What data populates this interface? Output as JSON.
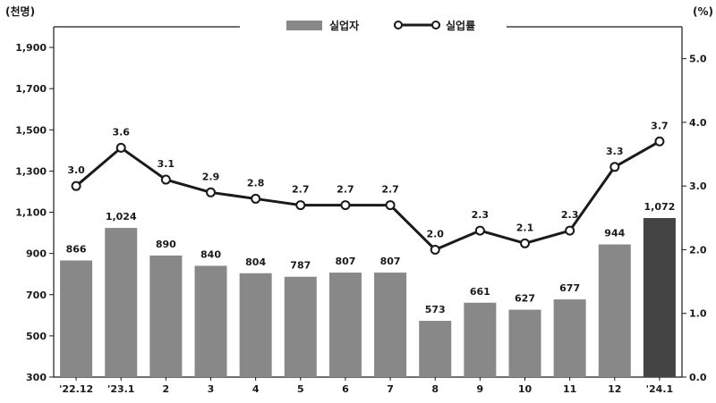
{
  "chart_data": {
    "type": "bar",
    "title": "",
    "left_unit": "(천명)",
    "right_unit": "(%)",
    "categories": [
      "'22.12",
      "'23.1",
      "2",
      "3",
      "4",
      "5",
      "6",
      "7",
      "8",
      "9",
      "10",
      "11",
      "12",
      "'24.1"
    ],
    "series": [
      {
        "name": "실업자",
        "type": "bar",
        "axis": "left",
        "values": [
          866,
          1024,
          890,
          840,
          804,
          787,
          807,
          807,
          573,
          661,
          627,
          677,
          944,
          1072
        ],
        "labels": [
          "866",
          "1,024",
          "890",
          "840",
          "804",
          "787",
          "807",
          "807",
          "573",
          "661",
          "627",
          "677",
          "944",
          "1,072"
        ],
        "highlight_last": true
      },
      {
        "name": "실업률",
        "type": "line",
        "axis": "right",
        "values": [
          3.0,
          3.6,
          3.1,
          2.9,
          2.8,
          2.7,
          2.7,
          2.7,
          2.0,
          2.3,
          2.1,
          2.3,
          3.3,
          3.7
        ],
        "labels": [
          "3.0",
          "3.6",
          "3.1",
          "2.9",
          "2.8",
          "2.7",
          "2.7",
          "2.7",
          "2.0",
          "2.3",
          "2.1",
          "2.3",
          "3.3",
          "3.7"
        ]
      }
    ],
    "ylim": [
      300,
      2000
    ],
    "y2lim": [
      0,
      5.5
    ],
    "left_ticks": [
      "300",
      "500",
      "700",
      "900",
      "1,100",
      "1,300",
      "1,500",
      "1,700",
      "1,900"
    ],
    "left_tick_values": [
      300,
      500,
      700,
      900,
      1100,
      1300,
      1500,
      1700,
      1900
    ],
    "right_ticks": [
      "0.0",
      "1.0",
      "2.0",
      "3.0",
      "4.0",
      "5.0"
    ],
    "right_tick_values": [
      0,
      1,
      2,
      3,
      4,
      5
    ],
    "legend_position": "top-center",
    "grid": false,
    "colors": {
      "bar": "#888888",
      "bar_highlight": "#444444",
      "line": "#1a1a1a",
      "marker_fill": "#ffffff",
      "text": "#1a1a1a"
    }
  }
}
